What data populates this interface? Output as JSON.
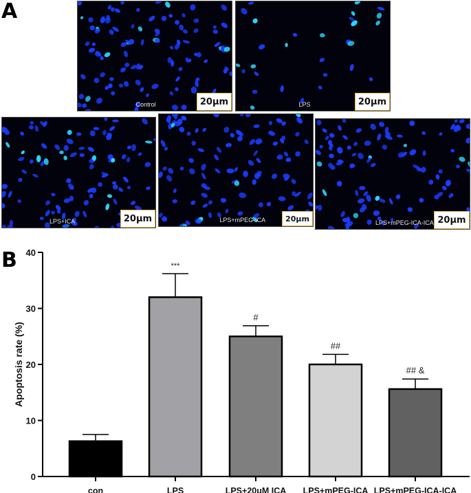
{
  "figure": {
    "panel_a_label": "A",
    "panel_b_label": "B"
  },
  "micrographs": [
    {
      "condition": "Control",
      "scale_bar": "20μm",
      "density": "high",
      "seed": 11
    },
    {
      "condition": "LPS",
      "scale_bar": "20μm",
      "density": "low",
      "seed": 23
    },
    {
      "condition": "LPS+ICA",
      "scale_bar": "20μm",
      "density": "high",
      "seed": 37
    },
    {
      "condition": "LPS+mPEG-ICA",
      "scale_bar": "20μm",
      "density": "high",
      "seed": 51
    },
    {
      "condition": "LPS+mPEG-ICA-ICA",
      "scale_bar": "20μm",
      "density": "high",
      "seed": 67
    }
  ],
  "colors": {
    "nucleus": "#1a3cff",
    "nucleus_bright": "#2ad8ff",
    "background": "#02020c",
    "scale_border": "#e0b040"
  },
  "chart_data": {
    "type": "bar",
    "title": "",
    "xlabel": "",
    "ylabel": "Apoptosis rate (%)",
    "ylim": [
      0,
      40
    ],
    "yticks": [
      0,
      10,
      20,
      30,
      40
    ],
    "grid": false,
    "legend": null,
    "categories": [
      "con",
      "LPS",
      "LPS+20μM ICA",
      "LPS+mPEG-ICA",
      "LPS+mPEG-ICA-ICA"
    ],
    "values": [
      6.3,
      32.0,
      25.0,
      20.0,
      15.6
    ],
    "error_upper": [
      7.5,
      36.2,
      26.9,
      21.8,
      17.4
    ],
    "bar_colors": [
      "#000000",
      "#a1a1a6",
      "#7f7f7f",
      "#d3d3d3",
      "#616161"
    ],
    "annotations": [
      "",
      "***",
      "#",
      "##",
      "## &"
    ]
  }
}
